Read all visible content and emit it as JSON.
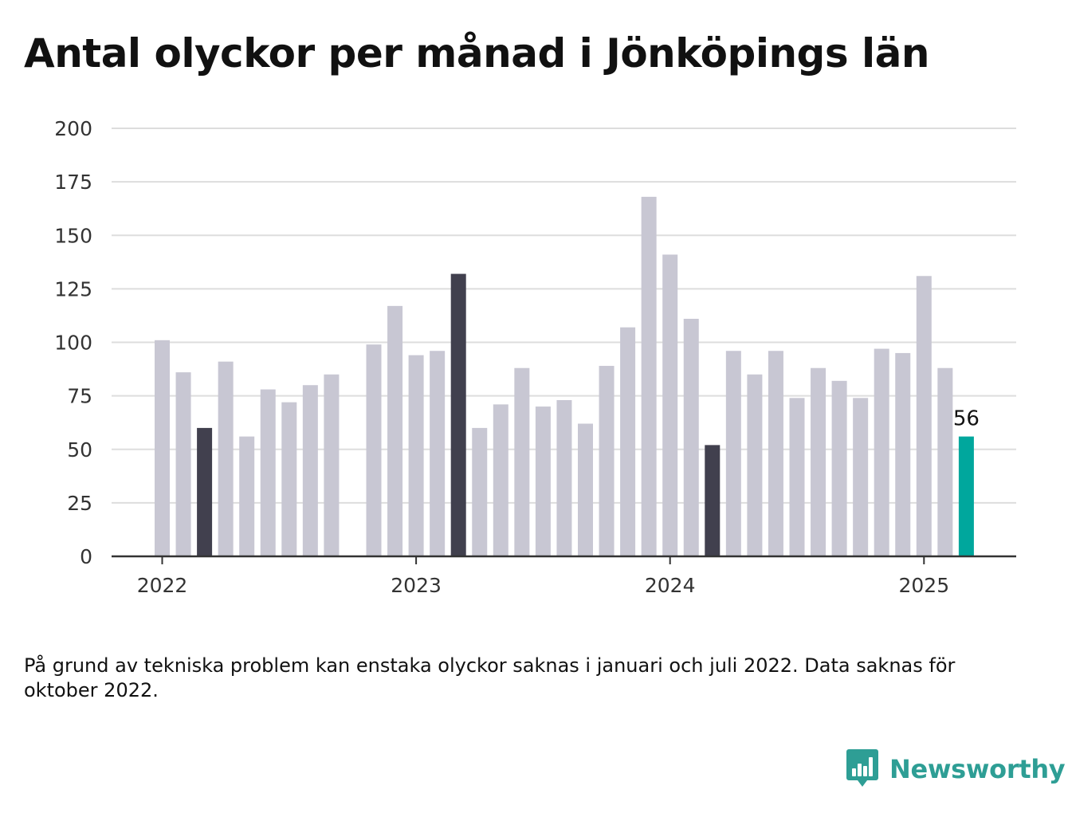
{
  "title": "Antal olyckor per månad i Jönköpings län",
  "footnote": "På grund av tekniska problem kan enstaka olyckor saknas i januari och juli 2022. Data saknas för oktober 2022.",
  "brand": {
    "name": "Newsworthy",
    "logo_icon": "bar-chart-speech-bubble-icon"
  },
  "colors": {
    "bar_default": "#c8c7d3",
    "bar_highlight": "#41404e",
    "bar_current": "#00a79d",
    "grid": "#dddddd",
    "axis": "#333333",
    "text": "#111111",
    "brand": "#2e9e95"
  },
  "chart_data": {
    "type": "bar",
    "title": "Antal olyckor per månad i Jönköpings län",
    "xlabel": "",
    "ylabel": "",
    "ylim": [
      0,
      200
    ],
    "yticks": [
      0,
      25,
      50,
      75,
      100,
      125,
      150,
      175,
      200
    ],
    "xticks": [
      "2022",
      "2023",
      "2024",
      "2025"
    ],
    "grid": true,
    "legend": "none",
    "categories": [
      "2022-01",
      "2022-02",
      "2022-03",
      "2022-04",
      "2022-05",
      "2022-06",
      "2022-07",
      "2022-08",
      "2022-09",
      "2022-10",
      "2022-11",
      "2022-12",
      "2023-01",
      "2023-02",
      "2023-03",
      "2023-04",
      "2023-05",
      "2023-06",
      "2023-07",
      "2023-08",
      "2023-09",
      "2023-10",
      "2023-11",
      "2023-12",
      "2024-01",
      "2024-02",
      "2024-03",
      "2024-04",
      "2024-05",
      "2024-06",
      "2024-07",
      "2024-08",
      "2024-09",
      "2024-10",
      "2024-11",
      "2024-12",
      "2025-01",
      "2025-02",
      "2025-03"
    ],
    "values": [
      101,
      86,
      60,
      91,
      56,
      78,
      72,
      80,
      85,
      null,
      99,
      117,
      94,
      96,
      132,
      60,
      71,
      88,
      70,
      73,
      62,
      89,
      107,
      168,
      141,
      111,
      52,
      96,
      85,
      96,
      74,
      88,
      82,
      74,
      97,
      95,
      131,
      88,
      56
    ],
    "highlighted": [
      "2022-03",
      "2023-03",
      "2024-03"
    ],
    "current": "2025-03",
    "annotations": [
      {
        "category": "2025-03",
        "text": "56"
      }
    ]
  }
}
